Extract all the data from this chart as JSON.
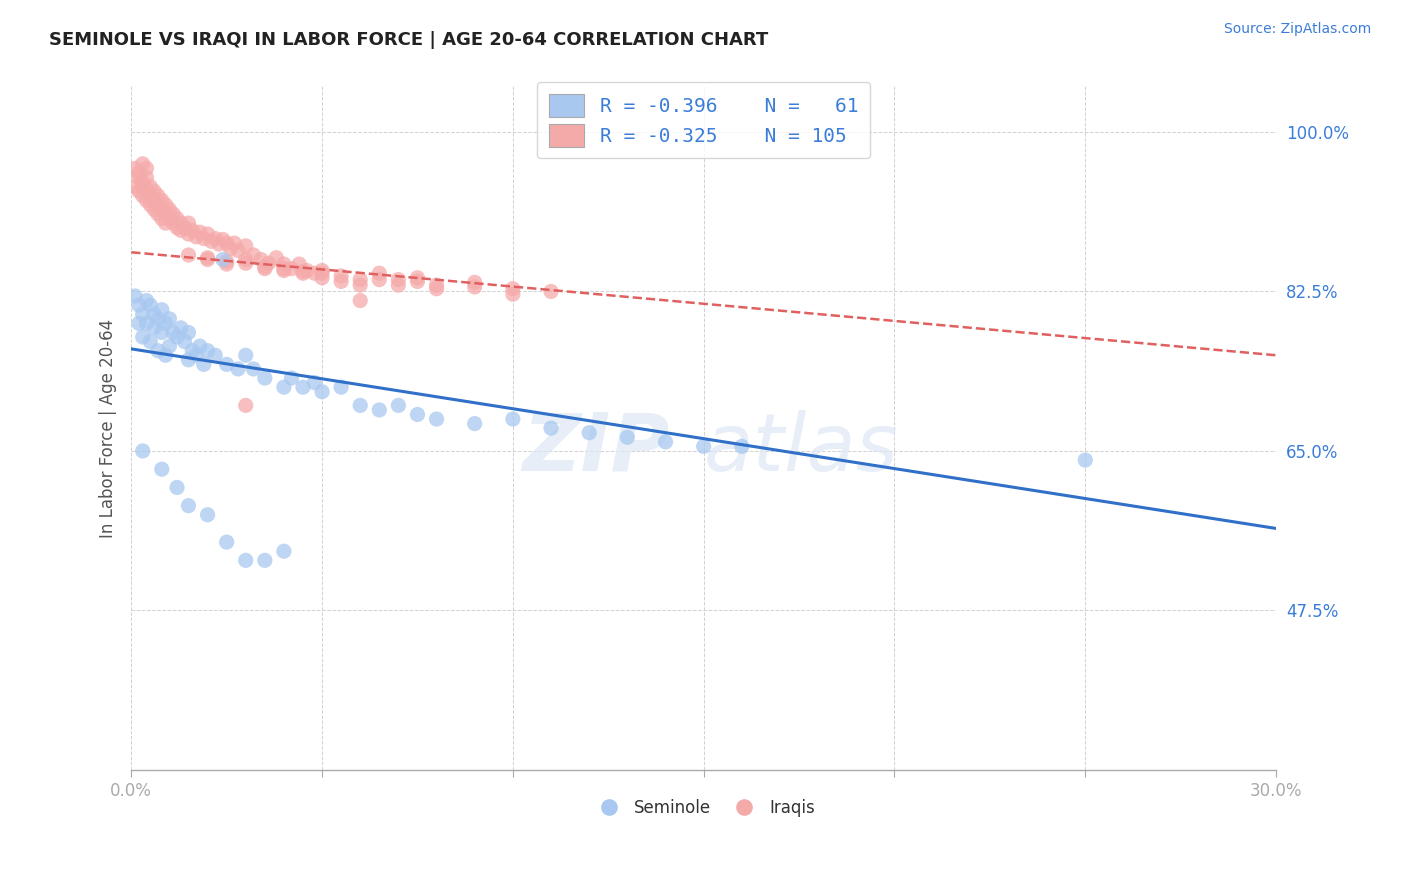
{
  "title": "SEMINOLE VS IRAQI IN LABOR FORCE | AGE 20-64 CORRELATION CHART",
  "source": "Source: ZipAtlas.com",
  "ylabel": "In Labor Force | Age 20-64",
  "ylabel_ticks": [
    "100.0%",
    "82.5%",
    "65.0%",
    "47.5%"
  ],
  "ylabel_vals": [
    1.0,
    0.825,
    0.65,
    0.475
  ],
  "xlim": [
    0.0,
    0.3
  ],
  "ylim": [
    0.3,
    1.05
  ],
  "blue_color": "#A8C8F0",
  "pink_color": "#F5AAAA",
  "blue_line_color": "#3070C8",
  "pink_line_color": "#E06060",
  "watermark": "ZIPatlas",
  "background_color": "#ffffff",
  "blue_line_x": [
    0.0,
    0.3
  ],
  "blue_line_y": [
    0.762,
    0.565
  ],
  "pink_line_x": [
    0.0,
    0.3
  ],
  "pink_line_y": [
    0.868,
    0.755
  ],
  "seminole_scatter": [
    [
      0.001,
      0.82
    ],
    [
      0.002,
      0.81
    ],
    [
      0.002,
      0.79
    ],
    [
      0.003,
      0.8
    ],
    [
      0.003,
      0.775
    ],
    [
      0.004,
      0.815
    ],
    [
      0.004,
      0.79
    ],
    [
      0.005,
      0.81
    ],
    [
      0.005,
      0.77
    ],
    [
      0.006,
      0.8
    ],
    [
      0.006,
      0.785
    ],
    [
      0.007,
      0.795
    ],
    [
      0.007,
      0.76
    ],
    [
      0.008,
      0.805
    ],
    [
      0.008,
      0.78
    ],
    [
      0.009,
      0.79
    ],
    [
      0.009,
      0.755
    ],
    [
      0.01,
      0.795
    ],
    [
      0.01,
      0.765
    ],
    [
      0.011,
      0.78
    ],
    [
      0.012,
      0.775
    ],
    [
      0.013,
      0.785
    ],
    [
      0.014,
      0.77
    ],
    [
      0.015,
      0.78
    ],
    [
      0.015,
      0.75
    ],
    [
      0.016,
      0.76
    ],
    [
      0.017,
      0.755
    ],
    [
      0.018,
      0.765
    ],
    [
      0.019,
      0.745
    ],
    [
      0.02,
      0.76
    ],
    [
      0.022,
      0.755
    ],
    [
      0.024,
      0.86
    ],
    [
      0.025,
      0.745
    ],
    [
      0.028,
      0.74
    ],
    [
      0.03,
      0.755
    ],
    [
      0.032,
      0.74
    ],
    [
      0.035,
      0.73
    ],
    [
      0.04,
      0.72
    ],
    [
      0.042,
      0.73
    ],
    [
      0.045,
      0.72
    ],
    [
      0.048,
      0.725
    ],
    [
      0.05,
      0.715
    ],
    [
      0.055,
      0.72
    ],
    [
      0.06,
      0.7
    ],
    [
      0.065,
      0.695
    ],
    [
      0.07,
      0.7
    ],
    [
      0.075,
      0.69
    ],
    [
      0.08,
      0.685
    ],
    [
      0.09,
      0.68
    ],
    [
      0.1,
      0.685
    ],
    [
      0.11,
      0.675
    ],
    [
      0.12,
      0.67
    ],
    [
      0.13,
      0.665
    ],
    [
      0.14,
      0.66
    ],
    [
      0.15,
      0.655
    ],
    [
      0.16,
      0.655
    ],
    [
      0.25,
      0.64
    ],
    [
      0.008,
      0.63
    ],
    [
      0.012,
      0.61
    ],
    [
      0.015,
      0.59
    ],
    [
      0.02,
      0.58
    ],
    [
      0.025,
      0.55
    ],
    [
      0.03,
      0.53
    ],
    [
      0.035,
      0.53
    ],
    [
      0.04,
      0.54
    ],
    [
      0.003,
      0.65
    ]
  ],
  "iraqi_scatter": [
    [
      0.001,
      0.96
    ],
    [
      0.001,
      0.94
    ],
    [
      0.002,
      0.955
    ],
    [
      0.002,
      0.935
    ],
    [
      0.002,
      0.95
    ],
    [
      0.003,
      0.945
    ],
    [
      0.003,
      0.93
    ],
    [
      0.003,
      0.94
    ],
    [
      0.004,
      0.95
    ],
    [
      0.004,
      0.935
    ],
    [
      0.004,
      0.925
    ],
    [
      0.005,
      0.94
    ],
    [
      0.005,
      0.93
    ],
    [
      0.005,
      0.92
    ],
    [
      0.006,
      0.935
    ],
    [
      0.006,
      0.925
    ],
    [
      0.006,
      0.915
    ],
    [
      0.007,
      0.93
    ],
    [
      0.007,
      0.92
    ],
    [
      0.007,
      0.91
    ],
    [
      0.008,
      0.925
    ],
    [
      0.008,
      0.915
    ],
    [
      0.008,
      0.905
    ],
    [
      0.009,
      0.92
    ],
    [
      0.009,
      0.91
    ],
    [
      0.009,
      0.9
    ],
    [
      0.01,
      0.915
    ],
    [
      0.01,
      0.905
    ],
    [
      0.011,
      0.91
    ],
    [
      0.011,
      0.9
    ],
    [
      0.012,
      0.905
    ],
    [
      0.012,
      0.895
    ],
    [
      0.013,
      0.9
    ],
    [
      0.013,
      0.892
    ],
    [
      0.014,
      0.895
    ],
    [
      0.015,
      0.9
    ],
    [
      0.015,
      0.888
    ],
    [
      0.016,
      0.892
    ],
    [
      0.017,
      0.885
    ],
    [
      0.018,
      0.89
    ],
    [
      0.019,
      0.883
    ],
    [
      0.02,
      0.888
    ],
    [
      0.021,
      0.88
    ],
    [
      0.022,
      0.883
    ],
    [
      0.023,
      0.877
    ],
    [
      0.024,
      0.882
    ],
    [
      0.025,
      0.878
    ],
    [
      0.026,
      0.872
    ],
    [
      0.027,
      0.878
    ],
    [
      0.028,
      0.87
    ],
    [
      0.03,
      0.875
    ],
    [
      0.032,
      0.865
    ],
    [
      0.034,
      0.86
    ],
    [
      0.036,
      0.856
    ],
    [
      0.038,
      0.862
    ],
    [
      0.04,
      0.855
    ],
    [
      0.042,
      0.85
    ],
    [
      0.044,
      0.855
    ],
    [
      0.046,
      0.848
    ],
    [
      0.048,
      0.845
    ],
    [
      0.05,
      0.848
    ],
    [
      0.055,
      0.842
    ],
    [
      0.06,
      0.838
    ],
    [
      0.065,
      0.845
    ],
    [
      0.07,
      0.838
    ],
    [
      0.075,
      0.84
    ],
    [
      0.08,
      0.832
    ],
    [
      0.09,
      0.835
    ],
    [
      0.1,
      0.828
    ],
    [
      0.11,
      0.825
    ],
    [
      0.02,
      0.86
    ],
    [
      0.025,
      0.855
    ],
    [
      0.03,
      0.86
    ],
    [
      0.035,
      0.85
    ],
    [
      0.04,
      0.848
    ],
    [
      0.045,
      0.845
    ],
    [
      0.05,
      0.84
    ],
    [
      0.055,
      0.836
    ],
    [
      0.06,
      0.832
    ],
    [
      0.065,
      0.838
    ],
    [
      0.07,
      0.832
    ],
    [
      0.075,
      0.836
    ],
    [
      0.08,
      0.828
    ],
    [
      0.09,
      0.83
    ],
    [
      0.1,
      0.822
    ],
    [
      0.015,
      0.865
    ],
    [
      0.02,
      0.862
    ],
    [
      0.025,
      0.858
    ],
    [
      0.03,
      0.856
    ],
    [
      0.035,
      0.852
    ],
    [
      0.04,
      0.85
    ],
    [
      0.045,
      0.847
    ],
    [
      0.05,
      0.845
    ],
    [
      0.03,
      0.7
    ],
    [
      0.06,
      0.815
    ],
    [
      0.003,
      0.965
    ],
    [
      0.004,
      0.96
    ]
  ]
}
